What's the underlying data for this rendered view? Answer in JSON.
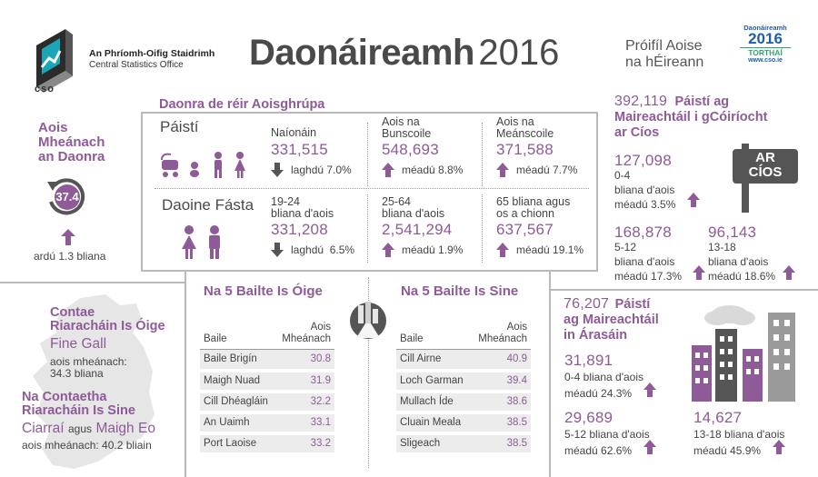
{
  "header": {
    "org_name_ga": "An Phríomh-Oifig Staidrimh",
    "org_name_en": "Central Statistics Office",
    "logo_text": "cso",
    "title_main": "Daonáireamh",
    "title_year": "2016",
    "subtitle_line1": "Próifíl Aoise",
    "subtitle_line2": "na hÉireann",
    "badge_line1": "Daonáireamh",
    "badge_year": "2016",
    "badge_results": "TORTHAÍ",
    "badge_url": "www.cso.ie"
  },
  "median_age": {
    "title_line1": "Aois",
    "title_line2": "Mheánach",
    "title_line3": "an Daonra",
    "value": "37.4",
    "change_label": "ardú 1.3 bliana"
  },
  "age_groups": {
    "title": "Daonra de réir Aoisghrúpa",
    "children_label": "Páistí",
    "adults_label": "Daoine Fásta",
    "children": [
      {
        "label_line1": "Naíonáin",
        "label_line2": "",
        "value": "331,515",
        "change": "laghdú 7.0%",
        "direction": "down"
      },
      {
        "label_line1": "Aois na",
        "label_line2": "Bunscoile",
        "value": "548,693",
        "change": "méadú 8.8%",
        "direction": "up"
      },
      {
        "label_line1": "Aois na",
        "label_line2": "Meánscoile",
        "value": "371,588",
        "change": "méadú 7.7%",
        "direction": "up"
      }
    ],
    "adults": [
      {
        "label_line1": "19-24",
        "label_line2": "bliana d'aois",
        "value": "331,208",
        "change": "laghdú  6.5%",
        "direction": "down"
      },
      {
        "label_line1": "25-64",
        "label_line2": "bliana d'aois",
        "value": "2,541,294",
        "change": "méadú 1.9%",
        "direction": "up"
      },
      {
        "label_line1": "65 bliana agus",
        "label_line2": "os a chionn",
        "value": "637,567",
        "change": "méadú 19.1%",
        "direction": "up"
      }
    ]
  },
  "rented": {
    "total": "392,119",
    "title_line1": "Páistí ag",
    "title_line2": "Maireachtáil i gCóiríocht",
    "title_line3": "ar Cíos",
    "sign_line1": "AR",
    "sign_line2": "CÍOS",
    "groups": [
      {
        "value": "127,098",
        "range": "0-4",
        "label": "bliana d'aois",
        "change": "méadú 3.5%"
      },
      {
        "value": "168,878",
        "range": "5-12",
        "label": "bliana d'aois",
        "change": "méadú 17.3%"
      },
      {
        "value": "96,143",
        "range": "13-18",
        "label": "bliana d'aois",
        "change": "méadú 18.6%"
      }
    ]
  },
  "counties": {
    "youngest_title_line1": "Contae",
    "youngest_title_line2": "Riaracháin Is Óige",
    "youngest_name": "Fine Gall",
    "youngest_label_line1": "aois mheánach:",
    "youngest_label_line2": "34.3 bliana",
    "oldest_title_line1": "Na Contaetha",
    "oldest_title_line2": "Riaracháin Is Sine",
    "oldest_name1": "Ciarraí",
    "oldest_join": "agus",
    "oldest_name2": "Maigh Eo",
    "oldest_label": "aois mheánach: 40.2 bliain"
  },
  "youngest_towns": {
    "title": "Na 5 Bailte Is Óige",
    "col_town": "Baile",
    "col_age_line1": "Aois",
    "col_age_line2": "Mheánach",
    "rows": [
      {
        "town": "Baile Brigín",
        "age": "30.8"
      },
      {
        "town": "Maigh Nuad",
        "age": "31.9"
      },
      {
        "town": "Cill Dhéagláin",
        "age": "32.2"
      },
      {
        "town": "An Uaimh",
        "age": "33.1"
      },
      {
        "town": "Port Laoise",
        "age": "33.2"
      }
    ]
  },
  "oldest_towns": {
    "title": "Na 5 Bailte Is Sine",
    "col_town": "Baile",
    "col_age_line1": "Aois",
    "col_age_line2": "Mheánach",
    "rows": [
      {
        "town": "Cill Airne",
        "age": "40.9"
      },
      {
        "town": "Loch Garman",
        "age": "39.4"
      },
      {
        "town": "Mullach Íde",
        "age": "38.6"
      },
      {
        "town": "Cluain Meala",
        "age": "38.5"
      },
      {
        "town": "Sligeach",
        "age": "38.5"
      }
    ]
  },
  "apartments": {
    "total": "76,207",
    "title_line1": "Páistí",
    "title_line2": "ag Maireachtáil",
    "title_line3": "in Árasáin",
    "groups": [
      {
        "value": "31,891",
        "label": "0-4 bliana d'aois",
        "change": "méadú 24.3%"
      },
      {
        "value": "29,689",
        "label": "5-12 bliana d'aois",
        "change": "méadú 62.6%"
      },
      {
        "value": "14,627",
        "label": "13-18 bliana d'aois",
        "change": "méadú 45.9%"
      }
    ]
  },
  "colors": {
    "accent": "#8e5a98",
    "text": "#3a3a3a",
    "lines": "#b9b9b9",
    "gray_icon": "#555555",
    "cso_green": "#2aa86b",
    "cso_blue": "#1f5fa8"
  }
}
